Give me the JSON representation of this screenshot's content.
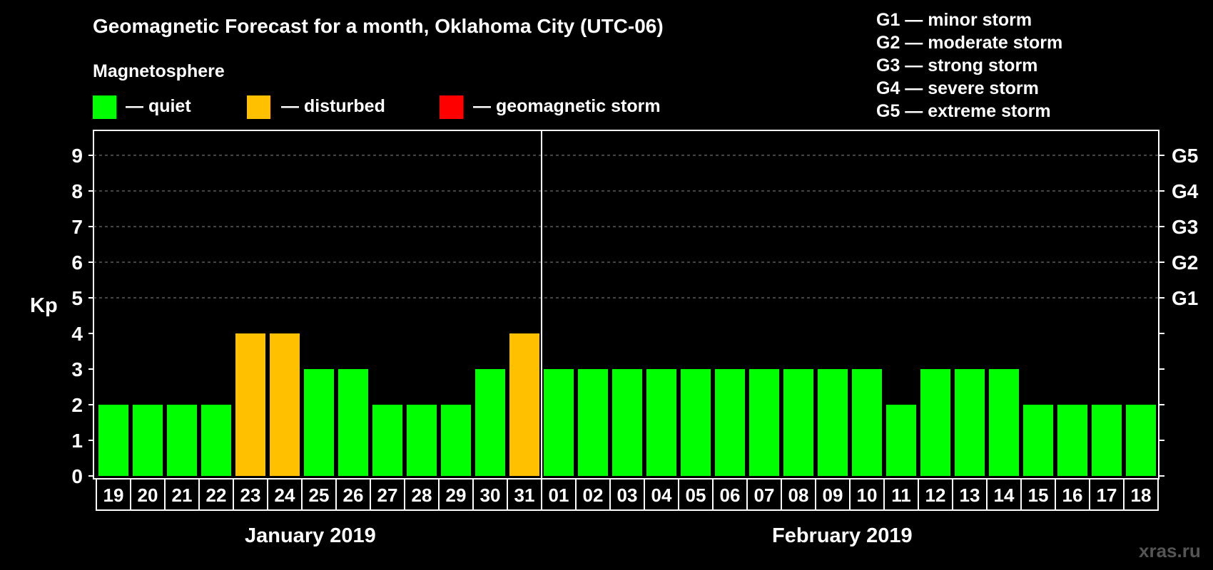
{
  "title": "Geomagnetic Forecast for a month, Oklahoma City (UTC-06)",
  "legend": {
    "title": "Magnetosphere",
    "items": [
      {
        "label": "— quiet",
        "color": "#00ff00"
      },
      {
        "label": "— disturbed",
        "color": "#ffc000"
      },
      {
        "label": "— geomagnetic storm",
        "color": "#ff0000"
      }
    ]
  },
  "storm_scale": [
    "G1 — minor storm",
    "G2 — moderate storm",
    "G3 — strong storm",
    "G4 — severe storm",
    "G5 — extreme storm"
  ],
  "watermark": "xras.ru",
  "months": [
    "January 2019",
    "February 2019"
  ],
  "chart_data": {
    "type": "bar",
    "ylabel": "Kp",
    "ylim": [
      0,
      9
    ],
    "yticks": [
      "0",
      "1",
      "2",
      "3",
      "4",
      "5",
      "6",
      "7",
      "8",
      "9"
    ],
    "right_ticks": [
      {
        "kp": 5,
        "label": "G1"
      },
      {
        "kp": 6,
        "label": "G2"
      },
      {
        "kp": 7,
        "label": "G3"
      },
      {
        "kp": 8,
        "label": "G4"
      },
      {
        "kp": 9,
        "label": "G5"
      }
    ],
    "grid": "dashed at Kp 5-9",
    "categories": [
      "19",
      "20",
      "21",
      "22",
      "23",
      "24",
      "25",
      "26",
      "27",
      "28",
      "29",
      "30",
      "31",
      "01",
      "02",
      "03",
      "04",
      "05",
      "06",
      "07",
      "08",
      "09",
      "10",
      "11",
      "12",
      "13",
      "14",
      "15",
      "16",
      "17",
      "18"
    ],
    "values": [
      2,
      2,
      2,
      2,
      4,
      4,
      3,
      3,
      2,
      2,
      2,
      3,
      4,
      3,
      3,
      3,
      3,
      3,
      3,
      3,
      3,
      3,
      3,
      2,
      3,
      3,
      3,
      2,
      2,
      2,
      2
    ],
    "color_levels": {
      "quiet": "#00ff00",
      "disturbed": "#ffc000",
      "storm": "#ff0000"
    }
  }
}
